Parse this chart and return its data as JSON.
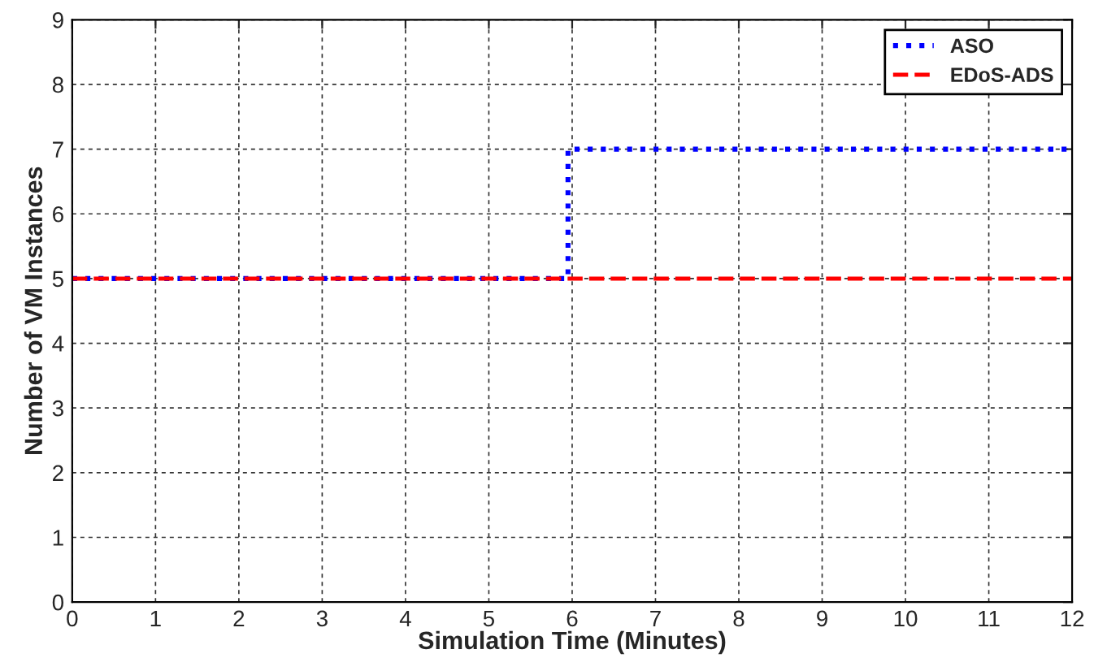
{
  "chart_data": {
    "type": "line",
    "xlabel": "Simulation Time (Minutes)",
    "ylabel": "Number of VM Instances",
    "xlim": [
      0,
      12
    ],
    "ylim": [
      0,
      9
    ],
    "xticks": [
      0,
      1,
      2,
      3,
      4,
      5,
      6,
      7,
      8,
      9,
      10,
      11,
      12
    ],
    "yticks": [
      0,
      1,
      2,
      3,
      4,
      5,
      6,
      7,
      8,
      9
    ],
    "grid": true,
    "legend": "top right",
    "marker": "none",
    "series": [
      {
        "name": "ASO",
        "color": "#0000ff",
        "line_style": "dotted",
        "x": [
          0,
          5.95,
          5.95,
          12
        ],
        "values": [
          5,
          5,
          7,
          7
        ]
      },
      {
        "name": "EDoS-ADS",
        "color": "#ff0000",
        "line_style": "dashed",
        "x": [
          0,
          12
        ],
        "values": [
          5,
          5
        ]
      }
    ]
  }
}
